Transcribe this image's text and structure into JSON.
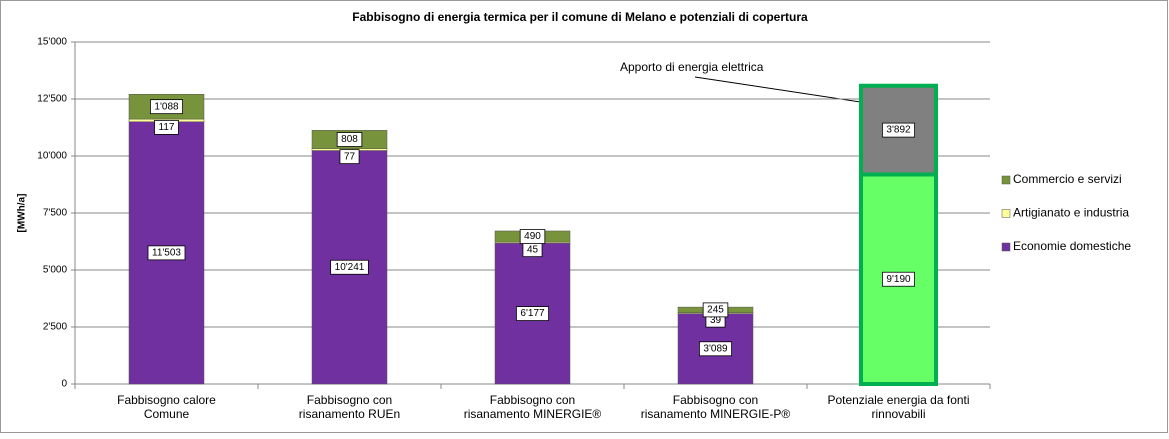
{
  "chart_data": {
    "type": "stacked_bar",
    "title": "Fabbisogno di energia termica per il comune di Melano e potenziali di copertura",
    "y_label": "[MWh/a]",
    "annotation": "Apporto di energia elettrica",
    "categories": [
      [
        "Fabbisogno calore",
        "Comune"
      ],
      [
        "Fabbisogno con",
        "risanamento RUEn"
      ],
      [
        "Fabbisogno con",
        "risanamento MINERGIE®"
      ],
      [
        "Fabbisogno con",
        "risanamento MINERGIE-P®"
      ],
      [
        "Potenziale energia da fonti",
        "rinnovabili"
      ]
    ],
    "series": [
      {
        "name": "Economie domestiche",
        "color": "#7030a0",
        "values": [
          11503,
          10241,
          6177,
          3089,
          null
        ],
        "value_labels": [
          "11'503",
          "10'241",
          "6'177",
          "3'089",
          null
        ]
      },
      {
        "name": "Artigianato e industria",
        "color": "#ffff99",
        "values": [
          117,
          77,
          45,
          39,
          null
        ],
        "value_labels": [
          "117",
          "77",
          "45",
          "39",
          null
        ]
      },
      {
        "name": "Commercio e servizi",
        "color": "#77933c",
        "values": [
          1088,
          808,
          490,
          245,
          null
        ],
        "value_labels": [
          "1'088",
          "808",
          "490",
          "245",
          null
        ]
      },
      {
        "color": "#66ff66",
        "stroke": "#00b050",
        "legend": false,
        "values": [
          null,
          null,
          null,
          null,
          9190
        ],
        "value_labels": [
          null,
          null,
          null,
          null,
          "9'190"
        ]
      },
      {
        "color": "#808080",
        "stroke": "#00b050",
        "legend": false,
        "values": [
          null,
          null,
          null,
          null,
          3892
        ],
        "value_labels": [
          null,
          null,
          null,
          null,
          "3'892"
        ]
      }
    ],
    "ylim": [
      0,
      15000
    ],
    "yticks": [
      0,
      {
        "value": 2500,
        "label": "2'500"
      },
      {
        "value": 5000,
        "label": "5'000"
      },
      {
        "value": 7500,
        "label": "7'500"
      },
      {
        "value": 10000,
        "label": "10'000"
      },
      {
        "value": 12500,
        "label": "12'500"
      },
      {
        "value": 15000,
        "label": "15'000"
      }
    ],
    "grid": true,
    "legend": "right"
  }
}
